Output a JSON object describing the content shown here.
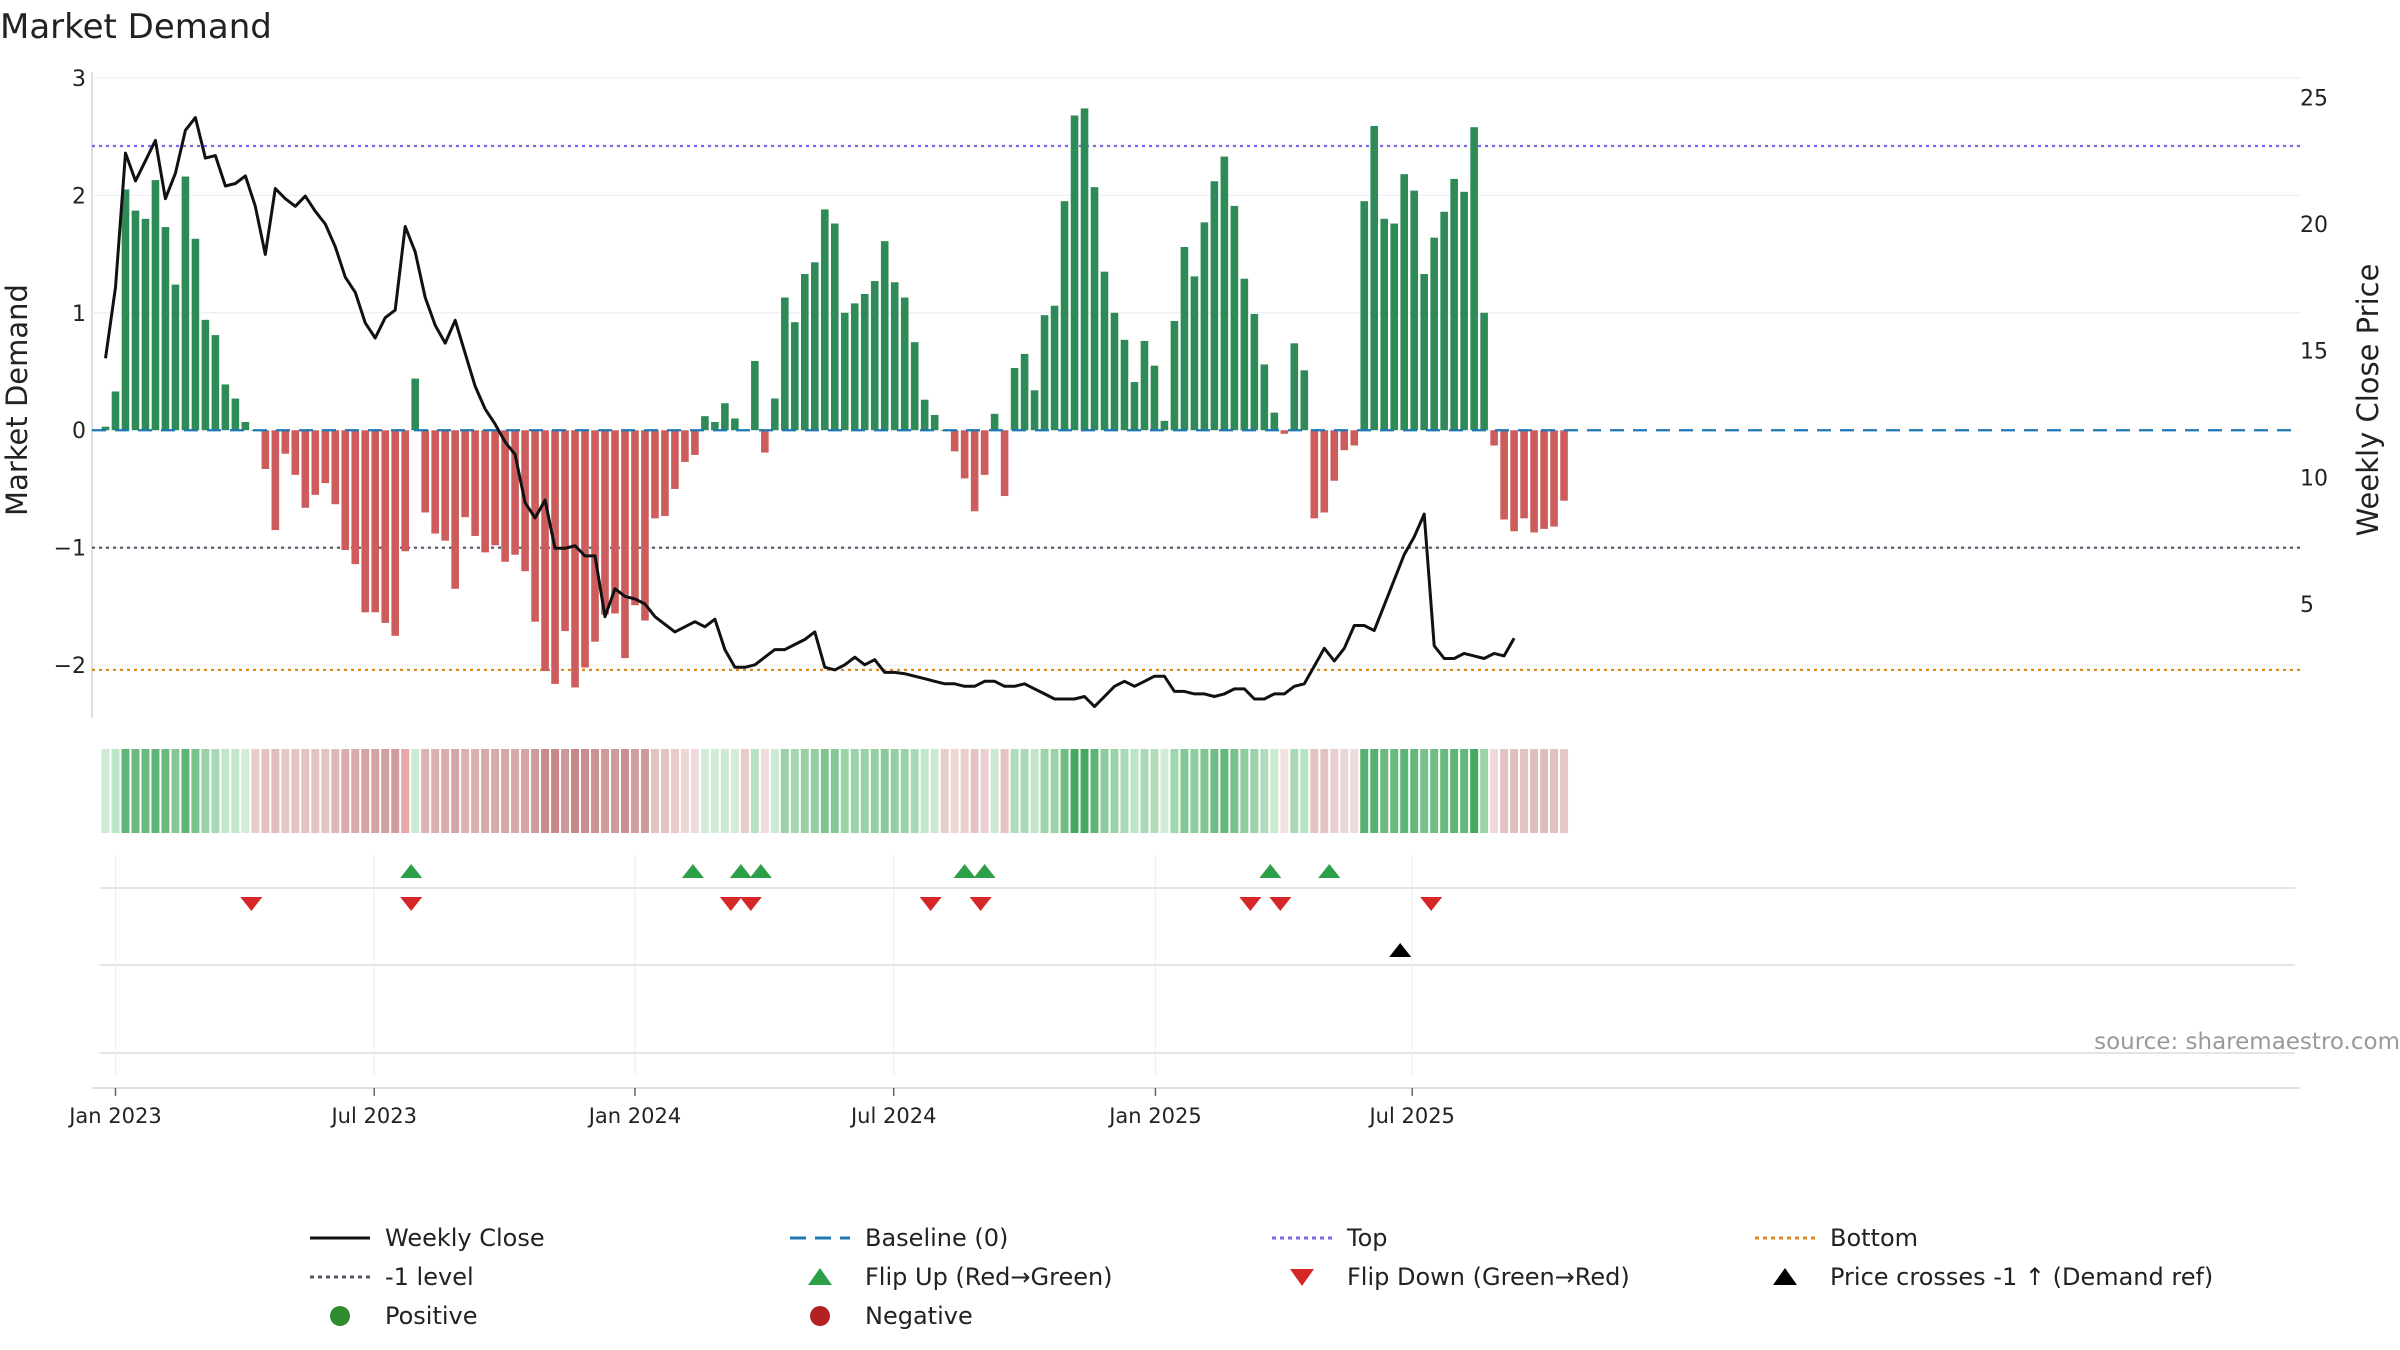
{
  "chart_data": {
    "type": "bar",
    "title": "Market Demand",
    "ylabel_left": "Market Demand",
    "ylabel_right": "Weekly Close Price",
    "ylim_left": [
      -2.45,
      3.05
    ],
    "ylim_right": [
      0.5,
      26.0
    ],
    "yticks_left": [
      3,
      2,
      1,
      0,
      -1,
      -2
    ],
    "yticks_left_labels": [
      "3",
      "2",
      "1",
      "0",
      "−1",
      "−2"
    ],
    "yticks_right": [
      25,
      20,
      15,
      10,
      5
    ],
    "yticks_right_labels": [
      "25",
      "20",
      "15",
      "10",
      "5"
    ],
    "x_start": "2022-12-26",
    "weeks": 143,
    "xticks": [
      {
        "label": "Jan 2023",
        "week": 1.0
      },
      {
        "label": "Jul 2023",
        "week": 26.9
      },
      {
        "label": "Jan 2024",
        "week": 53.0
      },
      {
        "label": "Jul 2024",
        "week": 78.9
      },
      {
        "label": "Jan 2025",
        "week": 105.1
      },
      {
        "label": "Jul 2025",
        "week": 130.8
      }
    ],
    "reference_lines": {
      "top": 2.42,
      "minus_one": -1.0,
      "bottom": -2.04,
      "baseline": 0
    },
    "demand": [
      0.03,
      0.33,
      2.05,
      1.87,
      1.8,
      2.13,
      1.73,
      1.24,
      2.16,
      1.63,
      0.94,
      0.81,
      0.39,
      0.27,
      0.07,
      0.0,
      -0.33,
      -0.85,
      -0.2,
      -0.38,
      -0.66,
      -0.55,
      -0.45,
      -0.63,
      -1.02,
      -1.14,
      -1.55,
      -1.55,
      -1.64,
      -1.75,
      -1.03,
      0.44,
      -0.7,
      -0.88,
      -0.94,
      -1.35,
      -0.74,
      -0.9,
      -1.04,
      -0.98,
      -1.12,
      -1.06,
      -1.2,
      -1.63,
      -2.05,
      -2.16,
      -1.71,
      -2.19,
      -2.02,
      -1.8,
      -1.57,
      -1.56,
      -1.94,
      -1.49,
      -1.62,
      -0.75,
      -0.73,
      -0.5,
      -0.27,
      -0.21,
      0.12,
      0.07,
      0.23,
      0.1,
      0.0,
      0.59,
      -0.19,
      0.27,
      1.13,
      0.92,
      1.33,
      1.43,
      1.88,
      1.76,
      1.0,
      1.08,
      1.16,
      1.27,
      1.61,
      1.26,
      1.13,
      0.75,
      0.26,
      0.13,
      0.0,
      -0.18,
      -0.41,
      -0.69,
      -0.38,
      0.14,
      -0.56,
      0.53,
      0.65,
      0.34,
      0.98,
      1.06,
      1.95,
      2.68,
      2.74,
      2.07,
      1.35,
      1.0,
      0.77,
      0.41,
      0.76,
      0.55,
      0.08,
      0.93,
      1.56,
      1.31,
      1.77,
      2.12,
      2.33,
      1.91,
      1.29,
      0.99,
      0.56,
      0.15,
      -0.03,
      0.74,
      0.51,
      -0.75,
      -0.7,
      -0.43,
      -0.17,
      -0.13,
      1.95,
      2.59,
      1.8,
      1.76,
      2.18,
      2.04,
      1.33,
      1.64,
      1.86,
      2.14,
      2.03,
      2.58,
      1.0,
      -0.13,
      -0.76,
      -0.86,
      -0.75,
      -0.87,
      -0.84,
      -0.82,
      -0.6
    ],
    "weekly_close": [
      14.7,
      17.5,
      22.8,
      21.7,
      22.5,
      23.3,
      21.0,
      22.0,
      23.7,
      24.2,
      22.6,
      22.7,
      21.5,
      21.6,
      21.9,
      20.7,
      18.8,
      21.4,
      21.0,
      20.7,
      21.1,
      20.5,
      20.0,
      19.1,
      17.9,
      17.3,
      16.1,
      15.5,
      16.3,
      16.6,
      19.9,
      18.9,
      17.1,
      16.0,
      15.3,
      16.2,
      14.9,
      13.6,
      12.7,
      12.1,
      11.4,
      10.9,
      9.0,
      8.4,
      9.1,
      7.2,
      7.2,
      7.3,
      6.9,
      6.9,
      4.5,
      5.6,
      5.3,
      5.2,
      5.0,
      4.5,
      4.2,
      3.9,
      4.1,
      4.3,
      4.1,
      4.4,
      3.2,
      2.5,
      2.5,
      2.6,
      2.9,
      3.2,
      3.2,
      3.4,
      3.6,
      3.9,
      2.5,
      2.4,
      2.6,
      2.9,
      2.6,
      2.8,
      2.3,
      2.3,
      2.25,
      2.15,
      2.05,
      1.95,
      1.85,
      1.85,
      1.75,
      1.75,
      1.95,
      1.95,
      1.75,
      1.75,
      1.85,
      1.65,
      1.45,
      1.25,
      1.25,
      1.25,
      1.35,
      0.95,
      1.35,
      1.75,
      1.95,
      1.75,
      1.95,
      2.15,
      2.15,
      1.55,
      1.55,
      1.45,
      1.45,
      1.35,
      1.45,
      1.65,
      1.65,
      1.25,
      1.25,
      1.45,
      1.45,
      1.75,
      1.85,
      2.55,
      3.25,
      2.75,
      3.25,
      4.15,
      4.15,
      3.95,
      4.95,
      5.95,
      6.95,
      7.65,
      8.55,
      3.35,
      2.85,
      2.85,
      3.05,
      2.95,
      2.85,
      3.05,
      2.95,
      3.65
    ],
    "strip_colors": [
      "#cdebd4",
      "#bde4c6",
      "#5fb576",
      "#6aba80",
      "#6aba80",
      "#5fb576",
      "#6aba80",
      "#85c796",
      "#5fb576",
      "#7ac28c",
      "#9ad3a8",
      "#a8d9b4",
      "#c3e6cb",
      "#c3e6cb",
      "#d2ecd8",
      "#e8cccc",
      "#e3c2c2",
      "#e1bebe",
      "#e6c8c8",
      "#e4c4c4",
      "#e3c2c2",
      "#e3c2c2",
      "#e3c2c2",
      "#dfb9b9",
      "#daadad",
      "#d8aaaa",
      "#d4a3a3",
      "#d4a3a3",
      "#d2a0a0",
      "#d09c9c",
      "#e8a8a8",
      "#cde9d4",
      "#dcb2b2",
      "#dab0b0",
      "#d9adad",
      "#d6a6a6",
      "#dcb2b2",
      "#dab0b0",
      "#d8abab",
      "#d8abab",
      "#d6a7a7",
      "#d7a9a9",
      "#d5a5a5",
      "#d09c9c",
      "#c98b8b",
      "#c88888",
      "#ce9898",
      "#c88888",
      "#ca8d8d",
      "#cd9393",
      "#d09b9b",
      "#d09b9b",
      "#cb8f8f",
      "#d19e9e",
      "#cf9999",
      "#e3c2c2",
      "#e3c2c2",
      "#e8cbcb",
      "#edd6d6",
      "#eedada",
      "#d3ecd9",
      "#d3ecd9",
      "#cde9d4",
      "#d3ecd9",
      "#e8cccc",
      "#b8e1c2",
      "#efdddd",
      "#cce9d2",
      "#9ad2a8",
      "#a4d7b1",
      "#97d1a5",
      "#92cea0",
      "#80c591",
      "#85c796",
      "#9cd4aa",
      "#9bd3a9",
      "#97d1a5",
      "#93cfa2",
      "#87c998",
      "#93cfa2",
      "#98d2a6",
      "#a8d9b4",
      "#c3e6cb",
      "#cbe8d1",
      "#e8cccc",
      "#edd6d6",
      "#e9cfcf",
      "#e4c4c4",
      "#e9cfcf",
      "#cde9d4",
      "#e3c2c2",
      "#b1dcbb",
      "#aad9b5",
      "#c3e6cb",
      "#9cd4aa",
      "#9bd3a9",
      "#6fbc84",
      "#45a85e",
      "#45a85e",
      "#5fb576",
      "#8ccc9c",
      "#9bd3a9",
      "#a8d9b4",
      "#bde4c6",
      "#a8d9b4",
      "#b1dcbb",
      "#d2ecd8",
      "#a0d5ad",
      "#84c695",
      "#8ecd9e",
      "#80c591",
      "#6fbc84",
      "#65b87b",
      "#78c18a",
      "#8dcc9d",
      "#9bd3a9",
      "#b1dcbb",
      "#cbe8d1",
      "#f2e2e2",
      "#aad9b5",
      "#b9e2c3",
      "#e3c2c2",
      "#e3c2c2",
      "#e9cfcf",
      "#edd6d6",
      "#eedada",
      "#57b06f",
      "#57b06f",
      "#6aba80",
      "#6aba80",
      "#5fb576",
      "#65b87b",
      "#78c18a",
      "#6fbc84",
      "#6aba80",
      "#5fb576",
      "#65b87b",
      "#45a85e",
      "#9bd3a9",
      "#eedada",
      "#e3c2c2",
      "#e1bebe",
      "#e3c2c2",
      "#e1bebe",
      "#e1bebe",
      "#e2c0c0",
      "#e6c8c8"
    ],
    "flip_up_weeks": [
      30.6,
      58.8,
      63.6,
      65.6,
      86.0,
      88.0,
      116.6,
      122.5
    ],
    "flip_down_weeks": [
      14.6,
      30.6,
      62.6,
      64.6,
      82.6,
      87.6,
      114.6,
      117.6,
      132.7
    ],
    "price_cross_weeks": [
      129.6
    ],
    "source_text": "source: sharemaestro.com",
    "legend": [
      {
        "label": "Weekly Close",
        "kind": "line",
        "color": "#111111",
        "dash": "solid"
      },
      {
        "label": "Baseline (0)",
        "kind": "line",
        "color": "#1f77b4",
        "dash": "dashed"
      },
      {
        "label": "Top",
        "kind": "line",
        "color": "#7b68ee",
        "dash": "dotted"
      },
      {
        "label": "Bottom",
        "kind": "line",
        "color": "#e08a1e",
        "dash": "dotted"
      },
      {
        "label": "-1 level",
        "kind": "line",
        "color": "#555566",
        "dash": "dotted"
      },
      {
        "label": "Flip Up (Red→Green)",
        "kind": "tri-up",
        "color": "#2ca048"
      },
      {
        "label": "Flip Down (Green→Red)",
        "kind": "tri-down",
        "color": "#d62728"
      },
      {
        "label": "Price crosses -1 ↑ (Demand ref)",
        "kind": "tri-up",
        "color": "#000000"
      },
      {
        "label": "Positive",
        "kind": "dot",
        "color": "#2e8b2e"
      },
      {
        "label": "Negative",
        "kind": "dot",
        "color": "#b22222"
      }
    ],
    "colors": {
      "positive_bar": "#2e8b57",
      "negative_bar": "#cd5c5c",
      "price_line": "#111111"
    }
  }
}
